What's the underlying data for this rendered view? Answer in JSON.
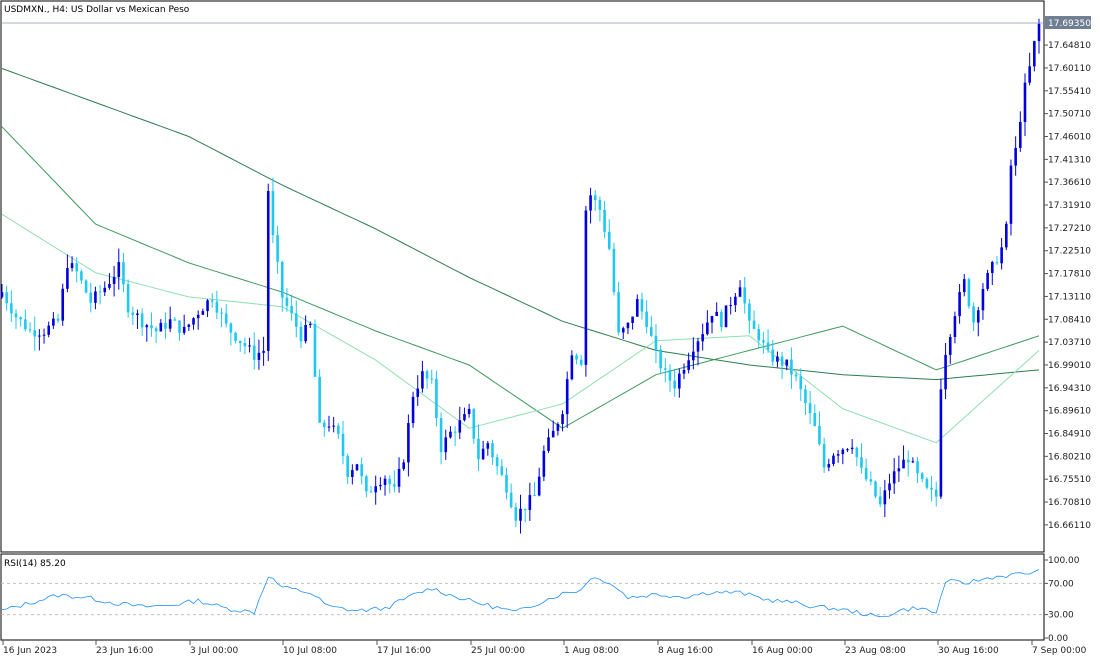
{
  "chart_header": {
    "symbol": "USDMXN.",
    "timeframe": "H4",
    "description": "US Dollar vs Mexican Peso"
  },
  "price_axis": {
    "labels": [
      "17.69350",
      "17.64810",
      "17.60110",
      "17.55410",
      "17.50710",
      "17.46010",
      "17.41310",
      "17.36610",
      "17.31910",
      "17.27210",
      "17.22510",
      "17.17810",
      "17.13110",
      "17.08410",
      "17.03710",
      "16.99010",
      "16.94310",
      "16.89610",
      "16.84910",
      "16.80210",
      "16.75510",
      "16.70810",
      "16.66110"
    ],
    "current_price": "17.69350"
  },
  "rsi_panel": {
    "label": "RSI(14) 85.20",
    "levels": [
      "100.00",
      "70.00",
      "30.00",
      "0.00"
    ]
  },
  "time_axis": {
    "labels": [
      "16 Jun 2023",
      "23 Jun 16:00",
      "3 Jul 00:00",
      "10 Jul 08:00",
      "17 Jul 16:00",
      "25 Jul 00:00",
      "1 Aug 08:00",
      "8 Aug 16:00",
      "16 Aug 00:00",
      "23 Aug 08:00",
      "30 Aug 16:00",
      "7 Sep 00:00"
    ]
  },
  "colors": {
    "bull": "#0000dd",
    "bear": "#1ec8f0",
    "ma_slow": "#2e7d4f",
    "ma_mid": "#3c9a5c",
    "ma_fast": "#8fe0b0",
    "rsi_line": "#1e90ff",
    "axis": "#555555",
    "price_tag_bg": "#6f7f91"
  },
  "chart_data": {
    "type": "candlestick",
    "y_range": [
      16.63,
      17.71
    ],
    "x_labels": [
      "16 Jun 2023",
      "23 Jun 16:00",
      "3 Jul 00:00",
      "10 Jul 08:00",
      "17 Jul 16:00",
      "25 Jul 00:00",
      "1 Aug 08:00",
      "8 Aug 16:00",
      "16 Aug 00:00",
      "23 Aug 08:00",
      "30 Aug 16:00",
      "7 Sep 00:00"
    ],
    "close_path": [
      [
        0,
        17.14
      ],
      [
        3,
        17.09
      ],
      [
        6,
        17.06
      ],
      [
        9,
        17.06
      ],
      [
        12,
        17.08
      ],
      [
        14,
        17.2
      ],
      [
        16,
        17.18
      ],
      [
        19,
        17.12
      ],
      [
        22,
        17.15
      ],
      [
        25,
        17.19
      ],
      [
        27,
        17.11
      ],
      [
        30,
        17.08
      ],
      [
        33,
        17.06
      ],
      [
        36,
        17.08
      ],
      [
        39,
        17.06
      ],
      [
        42,
        17.1
      ],
      [
        45,
        17.13
      ],
      [
        48,
        17.07
      ],
      [
        51,
        17.04
      ],
      [
        54,
        17.01
      ],
      [
        56,
        17.02
      ],
      [
        57,
        17.35
      ],
      [
        58,
        17.25
      ],
      [
        60,
        17.13
      ],
      [
        62,
        17.09
      ],
      [
        64,
        17.05
      ],
      [
        66,
        17.07
      ],
      [
        68,
        16.86
      ],
      [
        70,
        16.87
      ],
      [
        72,
        16.84
      ],
      [
        74,
        16.77
      ],
      [
        76,
        16.79
      ],
      [
        78,
        16.72
      ],
      [
        80,
        16.75
      ],
      [
        82,
        16.76
      ],
      [
        84,
        16.73
      ],
      [
        86,
        16.8
      ],
      [
        88,
        16.93
      ],
      [
        90,
        16.97
      ],
      [
        92,
        16.95
      ],
      [
        94,
        16.82
      ],
      [
        96,
        16.85
      ],
      [
        98,
        16.87
      ],
      [
        100,
        16.89
      ],
      [
        102,
        16.8
      ],
      [
        104,
        16.83
      ],
      [
        106,
        16.78
      ],
      [
        108,
        16.74
      ],
      [
        110,
        16.68
      ],
      [
        112,
        16.7
      ],
      [
        114,
        16.72
      ],
      [
        116,
        16.81
      ],
      [
        118,
        16.85
      ],
      [
        120,
        16.9
      ],
      [
        122,
        17.02
      ],
      [
        124,
        17.0
      ],
      [
        125,
        17.31
      ],
      [
        126,
        17.34
      ],
      [
        128,
        17.31
      ],
      [
        130,
        17.23
      ],
      [
        132,
        17.05
      ],
      [
        134,
        17.07
      ],
      [
        136,
        17.12
      ],
      [
        138,
        17.08
      ],
      [
        140,
        17.01
      ],
      [
        142,
        16.97
      ],
      [
        144,
        16.95
      ],
      [
        146,
        16.99
      ],
      [
        148,
        17.03
      ],
      [
        150,
        17.06
      ],
      [
        152,
        17.1
      ],
      [
        154,
        17.08
      ],
      [
        156,
        17.12
      ],
      [
        158,
        17.16
      ],
      [
        160,
        17.07
      ],
      [
        162,
        17.05
      ],
      [
        164,
        17.01
      ],
      [
        166,
        17.0
      ],
      [
        168,
        16.99
      ],
      [
        170,
        16.96
      ],
      [
        172,
        16.91
      ],
      [
        174,
        16.86
      ],
      [
        176,
        16.78
      ],
      [
        178,
        16.81
      ],
      [
        180,
        16.82
      ],
      [
        182,
        16.83
      ],
      [
        184,
        16.77
      ],
      [
        186,
        16.74
      ],
      [
        188,
        16.7
      ],
      [
        190,
        16.75
      ],
      [
        192,
        16.78
      ],
      [
        194,
        16.8
      ],
      [
        196,
        16.76
      ],
      [
        198,
        16.73
      ],
      [
        200,
        16.72
      ],
      [
        201,
        16.95
      ],
      [
        202,
        17.02
      ],
      [
        204,
        17.1
      ],
      [
        206,
        17.16
      ],
      [
        208,
        17.08
      ],
      [
        210,
        17.15
      ],
      [
        212,
        17.19
      ],
      [
        214,
        17.23
      ],
      [
        215,
        17.27
      ],
      [
        216,
        17.4
      ],
      [
        217,
        17.43
      ],
      [
        218,
        17.5
      ],
      [
        219,
        17.56
      ],
      [
        220,
        17.6
      ],
      [
        221,
        17.65
      ],
      [
        222,
        17.69
      ]
    ],
    "series": [
      {
        "values": [],
        "line": [
          [
            0,
            17.6
          ],
          [
            20,
            17.53
          ],
          [
            40,
            17.46
          ],
          [
            60,
            17.36
          ],
          [
            80,
            17.27
          ],
          [
            100,
            17.17
          ],
          [
            120,
            17.08
          ],
          [
            140,
            17.02
          ],
          [
            160,
            16.99
          ],
          [
            180,
            16.97
          ],
          [
            200,
            16.96
          ],
          [
            222,
            16.98
          ]
        ]
      },
      {
        "values": [],
        "line": [
          [
            0,
            17.48
          ],
          [
            20,
            17.28
          ],
          [
            40,
            17.2
          ],
          [
            60,
            17.14
          ],
          [
            80,
            17.06
          ],
          [
            100,
            16.99
          ],
          [
            120,
            16.86
          ],
          [
            140,
            16.97
          ],
          [
            160,
            17.02
          ],
          [
            180,
            17.07
          ],
          [
            200,
            16.98
          ],
          [
            222,
            17.05
          ]
        ]
      },
      {
        "values": [],
        "line": [
          [
            0,
            17.3
          ],
          [
            20,
            17.18
          ],
          [
            40,
            17.13
          ],
          [
            60,
            17.11
          ],
          [
            80,
            17.0
          ],
          [
            100,
            16.86
          ],
          [
            120,
            16.91
          ],
          [
            140,
            17.04
          ],
          [
            160,
            17.05
          ],
          [
            180,
            16.9
          ],
          [
            200,
            16.83
          ],
          [
            222,
            17.02
          ]
        ]
      }
    ],
    "rsi_range": [
      0,
      100
    ],
    "rsi_path": [
      [
        0,
        35
      ],
      [
        6,
        45
      ],
      [
        12,
        55
      ],
      [
        18,
        52
      ],
      [
        24,
        45
      ],
      [
        30,
        40
      ],
      [
        36,
        42
      ],
      [
        42,
        48
      ],
      [
        48,
        38
      ],
      [
        54,
        33
      ],
      [
        57,
        80
      ],
      [
        60,
        65
      ],
      [
        66,
        58
      ],
      [
        70,
        40
      ],
      [
        76,
        35
      ],
      [
        82,
        38
      ],
      [
        88,
        55
      ],
      [
        92,
        64
      ],
      [
        96,
        55
      ],
      [
        100,
        48
      ],
      [
        104,
        42
      ],
      [
        110,
        33
      ],
      [
        116,
        48
      ],
      [
        120,
        57
      ],
      [
        124,
        62
      ],
      [
        126,
        78
      ],
      [
        130,
        72
      ],
      [
        134,
        52
      ],
      [
        140,
        56
      ],
      [
        146,
        53
      ],
      [
        152,
        59
      ],
      [
        158,
        58
      ],
      [
        164,
        49
      ],
      [
        170,
        45
      ],
      [
        174,
        40
      ],
      [
        178,
        38
      ],
      [
        184,
        32
      ],
      [
        188,
        26
      ],
      [
        192,
        35
      ],
      [
        196,
        39
      ],
      [
        200,
        32
      ],
      [
        202,
        73
      ],
      [
        206,
        70
      ],
      [
        212,
        78
      ],
      [
        218,
        82
      ],
      [
        222,
        85.2
      ]
    ]
  }
}
